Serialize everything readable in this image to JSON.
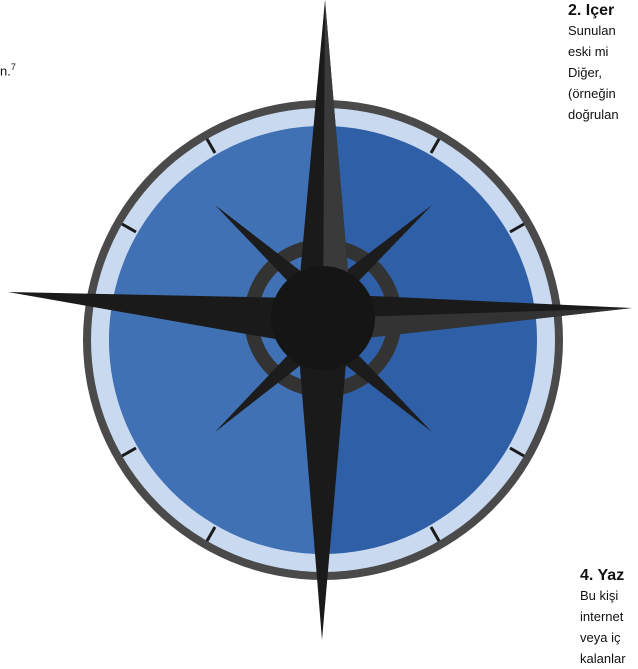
{
  "left_fragment": {
    "text": "n.",
    "footnote": "7"
  },
  "section_2": {
    "heading": "2. Içer",
    "lines": [
      "Sunulan",
      "eski mi",
      "Diğer,",
      "(örneğin",
      "doğrulan"
    ]
  },
  "section_4": {
    "heading": "4. Yaz",
    "lines": [
      "Bu kişi",
      "internet",
      "veya iç",
      "kalanlar"
    ]
  }
}
